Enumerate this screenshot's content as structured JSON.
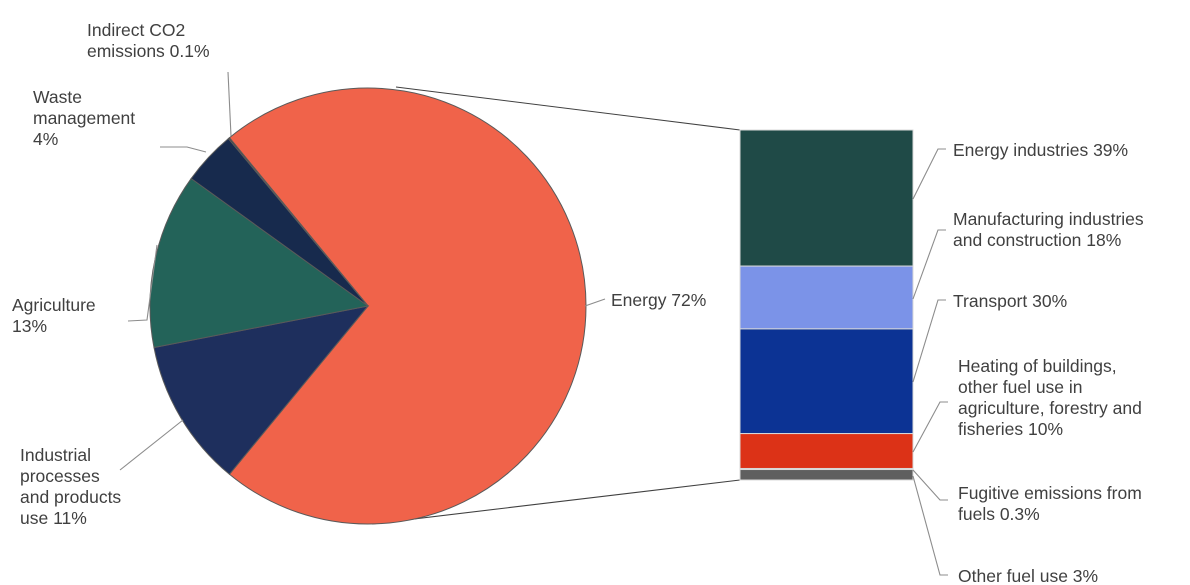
{
  "chart_data": {
    "type": "pie",
    "pie": {
      "slices": [
        {
          "label": "Energy 72%",
          "value": 72,
          "color": "#f0634a"
        },
        {
          "label": "Industrial processes and products use 11%",
          "value": 11,
          "color": "#1e2f5d"
        },
        {
          "label": "Agriculture 13%",
          "value": 13,
          "color": "#236359"
        },
        {
          "label": "Waste management 4%",
          "value": 4,
          "color": "#172a4d"
        },
        {
          "label": "Indirect CO2 emissions 0.1%",
          "value": 0.1,
          "color": "#3a3a3a"
        }
      ]
    },
    "breakdown": {
      "of": "Energy 72%",
      "segments": [
        {
          "label": "Energy industries 39%",
          "value": 39,
          "color": "#1f4a47"
        },
        {
          "label": "Manufacturing industries and construction 18%",
          "value": 18,
          "color": "#7b93e8"
        },
        {
          "label": "Transport 30%",
          "value": 30,
          "color": "#0c3394"
        },
        {
          "label": "Heating of buildings, other fuel use in agriculture, forestry and fisheries 10%",
          "value": 10,
          "color": "#dc3217"
        },
        {
          "label": "Fugitive emissions from fuels 0.3%",
          "value": 0.3,
          "color": "#5f5f5f"
        },
        {
          "label": "Other fuel use 3%",
          "value": 3,
          "color": "#5f5f5f"
        }
      ]
    }
  },
  "labels": {
    "energy": [
      "Energy 72%"
    ],
    "industrial": [
      "Industrial",
      "processes",
      "and products",
      "use 11%"
    ],
    "agriculture": [
      "Agriculture",
      "13%"
    ],
    "waste": [
      "Waste",
      "management",
      "4%"
    ],
    "indirect": [
      "Indirect CO2",
      "emissions 0.1%"
    ],
    "energy_industries": [
      "Energy industries 39%"
    ],
    "manufacturing": [
      "Manufacturing industries",
      "and construction 18%"
    ],
    "transport": [
      "Transport 30%"
    ],
    "heating": [
      "Heating of buildings,",
      "other fuel use in",
      "agriculture, forestry and",
      "fisheries 10%"
    ],
    "fugitive": [
      "Fugitive emissions from",
      "fuels 0.3%"
    ],
    "other": [
      "Other fuel use 3%"
    ]
  }
}
